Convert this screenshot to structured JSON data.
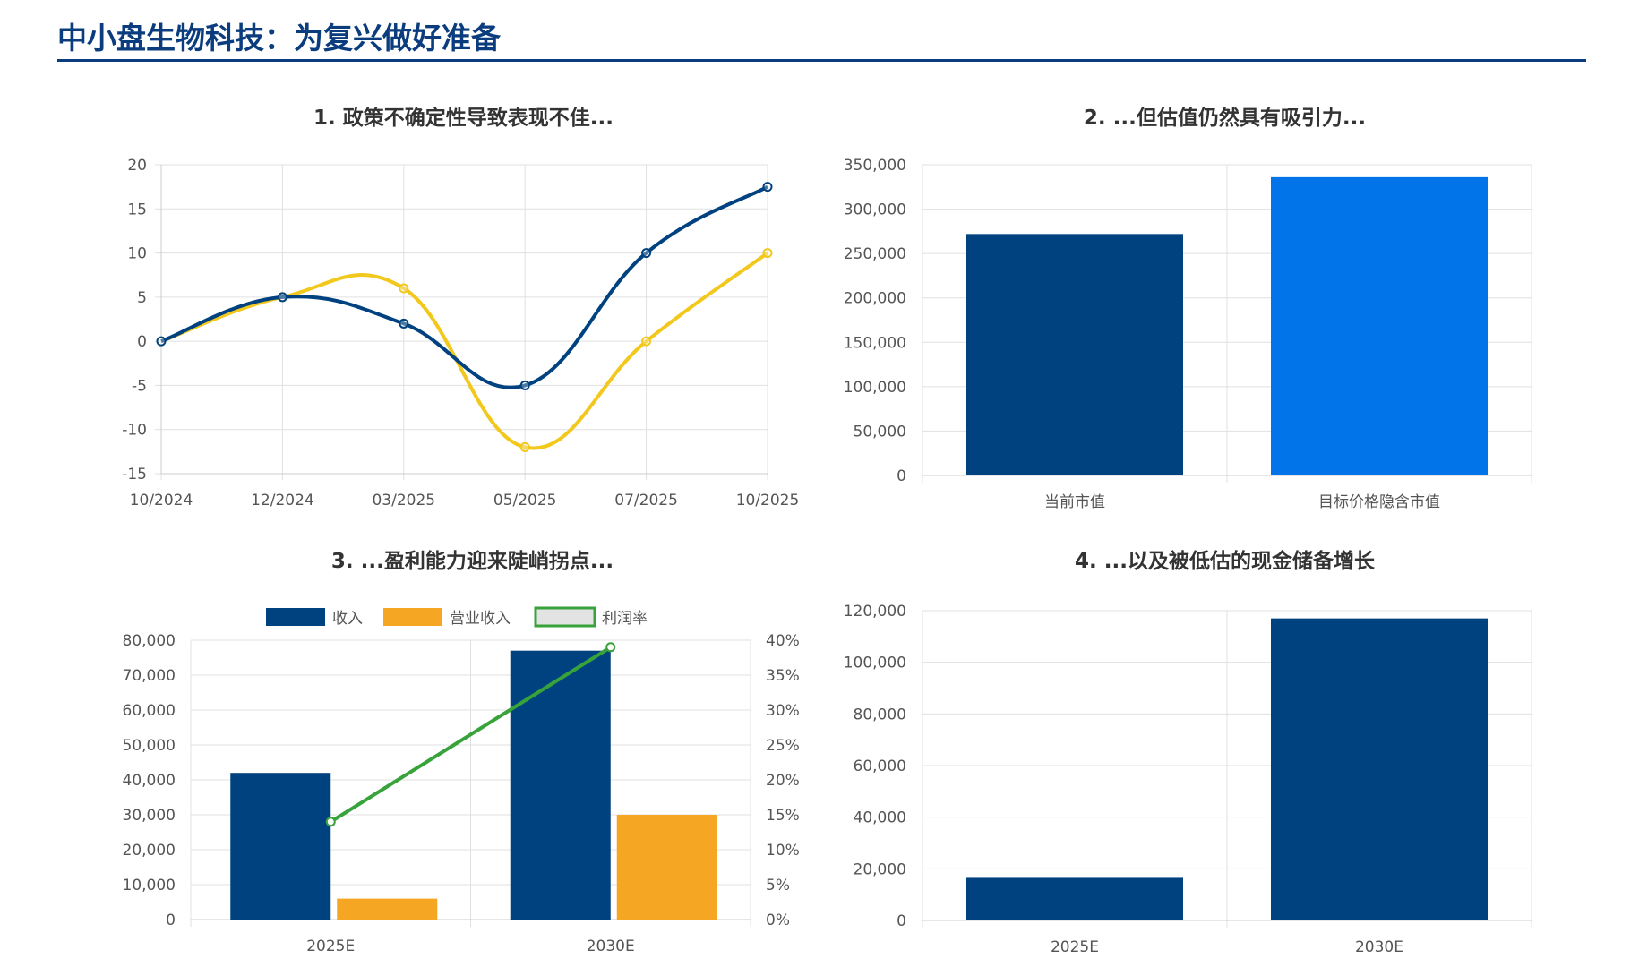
{
  "page": {
    "title": "中小盘生物科技：为复兴做好准备"
  },
  "colors": {
    "title": "#0b3d7e",
    "navy": "#00427f",
    "yellow": "#f2c81d",
    "blue": "#0074e8",
    "orange": "#f5a623",
    "green": "#37a33a",
    "grid": "#e0e0e0"
  },
  "chart_data": [
    {
      "type": "line",
      "title": "1. 政策不确定性导致表现不佳...",
      "x": [
        "10/2024",
        "12/2024",
        "03/2025",
        "05/2025",
        "07/2025",
        "10/2025"
      ],
      "series": [
        {
          "name": "",
          "color": "#00427f",
          "values": [
            0,
            5,
            2,
            -5,
            10,
            17.5
          ]
        },
        {
          "name": "",
          "color": "#f2c81d",
          "values": [
            0,
            5,
            6,
            -12,
            0,
            10
          ]
        }
      ],
      "ylim": [
        -15,
        20
      ],
      "yticks": [
        20,
        15,
        10,
        5,
        0,
        -5,
        -10,
        -15
      ],
      "grid": true
    },
    {
      "type": "bar",
      "title": "2. ...但估值仍然具有吸引力...",
      "categories": [
        "当前市值",
        "目标价格隐含市值"
      ],
      "values": [
        272000,
        336000
      ],
      "colors": [
        "#00427f",
        "#0074e8"
      ],
      "ylim": [
        0,
        350000
      ],
      "yticks": [
        "350,000",
        "300,000",
        "250,000",
        "200,000",
        "150,000",
        "100,000",
        "50,000",
        "0"
      ],
      "grid": true
    },
    {
      "type": "bar",
      "title": "3. ...盈利能力迎来陡峭拐点...",
      "categories": [
        "2025E",
        "2030E"
      ],
      "series": [
        {
          "name": "收入",
          "type": "bar",
          "axis": "left",
          "color": "#00427f",
          "values": [
            42000,
            77000
          ]
        },
        {
          "name": "营业收入",
          "type": "bar",
          "axis": "left",
          "color": "#f5a623",
          "values": [
            6000,
            30000
          ]
        },
        {
          "name": "利润率",
          "type": "line",
          "axis": "right",
          "color": "#37a33a",
          "values": [
            0.14,
            0.39
          ]
        }
      ],
      "ylim": [
        0,
        80000
      ],
      "y2lim": [
        0,
        0.4
      ],
      "yticks": [
        "80,000",
        "70,000",
        "60,000",
        "50,000",
        "40,000",
        "30,000",
        "20,000",
        "10,000",
        "0"
      ],
      "y2ticks": [
        "40%",
        "35%",
        "30%",
        "25%",
        "20%",
        "15%",
        "10%",
        "5%",
        "0%"
      ],
      "legend": "top",
      "grid": true
    },
    {
      "type": "bar",
      "title": "4. ...以及被低估的现金储备增长",
      "categories": [
        "2025E",
        "2030E"
      ],
      "values": [
        16500,
        117000
      ],
      "colors": [
        "#00427f",
        "#00427f"
      ],
      "ylim": [
        0,
        120000
      ],
      "yticks": [
        "120,000",
        "100,000",
        "80,000",
        "60,000",
        "40,000",
        "20,000",
        "0"
      ],
      "grid": true
    }
  ]
}
